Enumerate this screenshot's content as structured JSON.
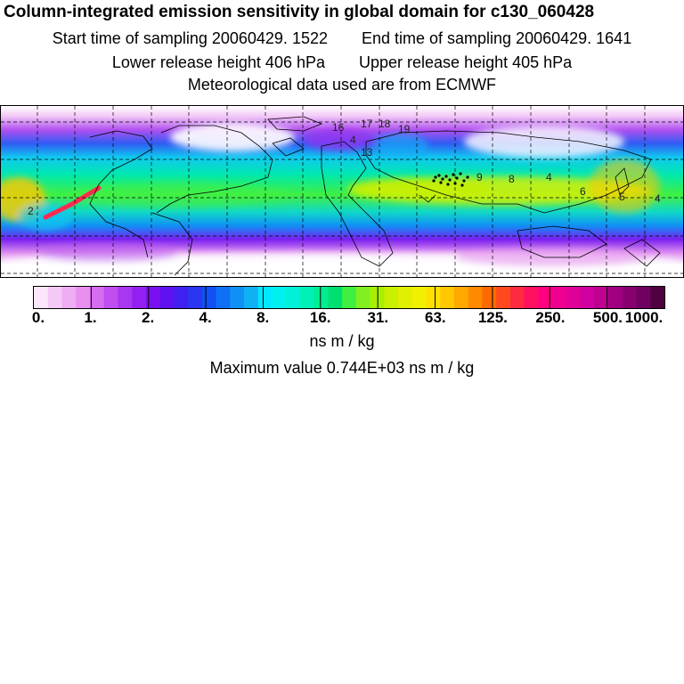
{
  "header": {
    "title": "Column-integrated emission sensitivity in global domain for c130_060428",
    "start_label": "Start time of sampling 20060429.  1522",
    "end_label": "End time of sampling 20060429.  1641",
    "lower_label": "Lower release height  406 hPa",
    "upper_label": "Upper release height  405 hPa",
    "met_label": "Meteorological data used are from ECMWF"
  },
  "map": {
    "contour_labels": [
      "2",
      "16",
      "17",
      "18",
      "19",
      "4",
      "13",
      "9",
      "8",
      "4",
      "6",
      "5",
      "4"
    ]
  },
  "colorbar": {
    "ticks": [
      "0.",
      "1.",
      "2.",
      "4.",
      "8.",
      "16.",
      "31.",
      "63.",
      "125.",
      "250.",
      "500.",
      "1000."
    ],
    "colors": [
      "#fbe6fb",
      "#f5c9f7",
      "#efadf4",
      "#e88ff0",
      "#d66cf0",
      "#c04df0",
      "#a936f0",
      "#9320f0",
      "#7a10f0",
      "#5e10f0",
      "#4020f0",
      "#2a36f0",
      "#1050f5",
      "#1070f5",
      "#1090f5",
      "#10b0f5",
      "#00e8ff",
      "#00f0f0",
      "#00f0d8",
      "#00f0b8",
      "#00ee90",
      "#00e070",
      "#40f040",
      "#80f020",
      "#a8f000",
      "#c8f000",
      "#e0f000",
      "#f0f000",
      "#ffe000",
      "#ffc800",
      "#ffa800",
      "#ff8a00",
      "#ff6a00",
      "#ff4a20",
      "#ff2a40",
      "#ff1060",
      "#ff0080",
      "#f00090",
      "#e00098",
      "#d000a0",
      "#c00090",
      "#a00080",
      "#880070",
      "#700060",
      "#500040"
    ]
  },
  "units_label": "ns m / kg",
  "max_label": "Maximum value  0.744E+03 ns m / kg"
}
